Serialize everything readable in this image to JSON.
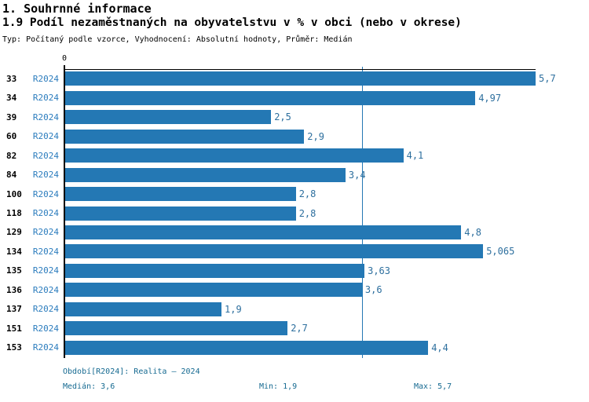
{
  "header": {
    "title": "1. Souhrnné informace",
    "subtitle": "1.9 Podíl nezaměstnaných na obyvatelstvu v % v obci (nebo v okrese)",
    "meta": "Typ: Počítaný podle vzorce, Vyhodnocení: Absolutní hodnoty, Průměr: Medián"
  },
  "chart_data": {
    "type": "bar",
    "orientation": "horizontal",
    "title": "1.9 Podíl nezaměstnaných na obyvatelstvu v % v obci (nebo v okrese)",
    "categories": [
      "33",
      "34",
      "39",
      "60",
      "82",
      "84",
      "100",
      "118",
      "129",
      "134",
      "135",
      "136",
      "137",
      "151",
      "153"
    ],
    "series_label": "R2024",
    "values": [
      5.7,
      4.97,
      2.5,
      2.9,
      4.1,
      3.4,
      2.8,
      2.8,
      4.8,
      5.065,
      3.63,
      3.6,
      1.9,
      2.7,
      4.4
    ],
    "value_labels": [
      "5,7",
      "4,97",
      "2,5",
      "2,9",
      "4,1",
      "3,4",
      "2,8",
      "2,8",
      "4,8",
      "5,065",
      "3,63",
      "3,6",
      "1,9",
      "2,7",
      "4,4"
    ],
    "xlim": [
      0,
      5.7
    ],
    "x_axis_label": "0",
    "median_line_value": 3.6,
    "grid": false,
    "legend_position": "none",
    "bar_color": "#2478b4",
    "median_line_color": "#2478b4"
  },
  "footer": {
    "period": "Období[R2024]: Realita – 2024",
    "median": "Medián: 3,6",
    "min": "Min: 1,9",
    "max": "Max: 5,7"
  }
}
